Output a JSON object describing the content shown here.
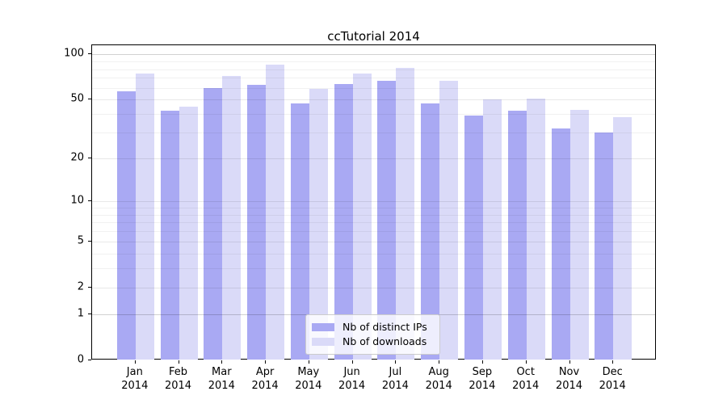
{
  "title": "ccTutorial 2014",
  "chart_data": {
    "type": "bar",
    "title": "ccTutorial 2014",
    "categories": [
      "Jan",
      "Feb",
      "Mar",
      "Apr",
      "May",
      "Jun",
      "Jul",
      "Aug",
      "Sep",
      "Oct",
      "Nov",
      "Dec"
    ],
    "year": "2014",
    "series": [
      {
        "name": "Nb of distinct IPs",
        "color": "#a9a9f3",
        "values": [
          57,
          42,
          60,
          63,
          47,
          64,
          67,
          47,
          39,
          42,
          32,
          30
        ]
      },
      {
        "name": "Nb of downloads",
        "color": "#dadaf8",
        "values": [
          75,
          45,
          72,
          86,
          59,
          75,
          82,
          67,
          50,
          51,
          43,
          38
        ]
      }
    ],
    "yscale": "log1p",
    "ylim": [
      0,
      115
    ],
    "yticks": [
      100,
      50,
      20,
      10,
      5,
      2,
      1,
      0
    ],
    "grid": {
      "minor": [
        3,
        4,
        6,
        7,
        8,
        9,
        30,
        40,
        60,
        70,
        80,
        90
      ],
      "major": [
        2,
        5,
        10,
        20,
        50
      ],
      "strong": [
        1,
        100
      ]
    },
    "legend_position": "lower center",
    "grid_on": true
  }
}
